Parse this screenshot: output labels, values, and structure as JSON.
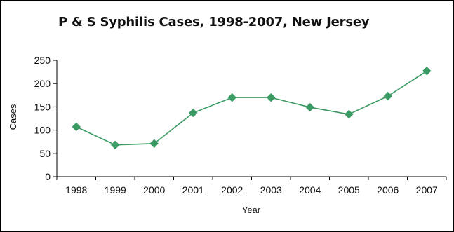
{
  "chart_data": {
    "type": "line",
    "title": "P & S Syphilis Cases, 1998-2007, New Jersey",
    "xlabel": "Year",
    "ylabel": "Cases",
    "categories": [
      "1998",
      "1999",
      "2000",
      "2001",
      "2002",
      "2003",
      "2004",
      "2005",
      "2006",
      "2007"
    ],
    "series": [
      {
        "values": [
          107,
          68,
          71,
          137,
          170,
          170,
          149,
          134,
          173,
          227
        ]
      }
    ],
    "ylim": [
      0,
      250
    ],
    "yticks": [
      0,
      50,
      100,
      150,
      200,
      250
    ],
    "grid": false,
    "legend": "none",
    "colors": {
      "series": "#3a9a63",
      "axis": "#000000"
    }
  }
}
